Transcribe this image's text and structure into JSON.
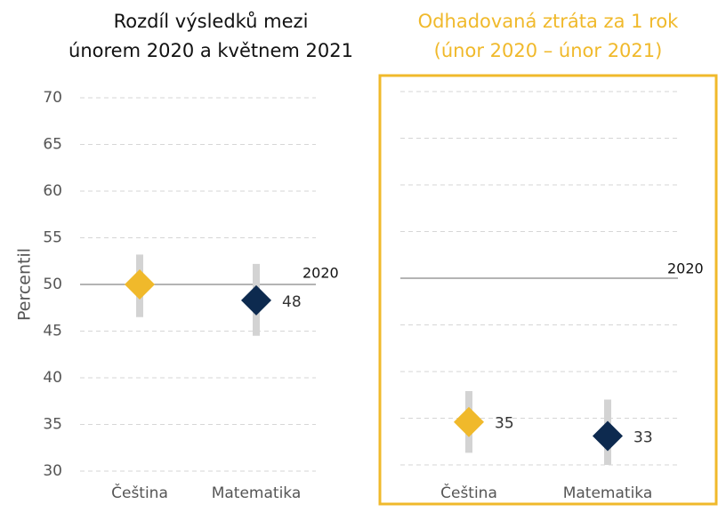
{
  "chart_data": [
    {
      "type": "dot",
      "title": [
        "Rozdíl výsledků mezi",
        "únorem 2020 a květnem 2021"
      ],
      "title_color": "#111111",
      "y_label": "Percentil",
      "categories": [
        "Čeština",
        "Matematika"
      ],
      "values": [
        50,
        48.3
      ],
      "value_labels": [
        null,
        "48"
      ],
      "intervals": [
        [
          46.5,
          53.2
        ],
        [
          44.5,
          52.2
        ]
      ],
      "colors": [
        "#f0b92b",
        "#0d2a4f"
      ],
      "reference_line": {
        "value": 50,
        "label": "2020"
      },
      "ylim": [
        30,
        70
      ],
      "yticks": [
        30,
        35,
        40,
        45,
        50,
        55,
        60,
        65,
        70
      ],
      "tick_labels": true,
      "grid": true,
      "frame": false
    },
    {
      "type": "dot",
      "title": [
        "Odhadovaná ztráta za 1 rok",
        "(únor 2020 – únor 2021)"
      ],
      "title_color": "#f0b92b",
      "categories": [
        "Čeština",
        "Matematika"
      ],
      "values": [
        34.6,
        33.1
      ],
      "value_labels": [
        "35",
        "33"
      ],
      "intervals": [
        [
          31.3,
          37.9
        ],
        [
          30.0,
          37.0
        ]
      ],
      "colors": [
        "#f0b92b",
        "#0d2a4f"
      ],
      "reference_line": {
        "value": 50,
        "label": "2020"
      },
      "ylim": [
        30,
        70
      ],
      "yticks": [
        30,
        35,
        40,
        45,
        50,
        55,
        60,
        65,
        70
      ],
      "tick_labels": false,
      "grid": true,
      "frame": true,
      "frame_color": "#f0b92b"
    }
  ]
}
